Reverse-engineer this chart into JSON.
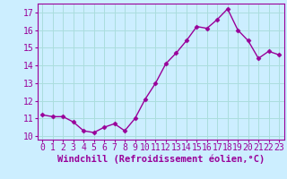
{
  "x": [
    0,
    1,
    2,
    3,
    4,
    5,
    6,
    7,
    8,
    9,
    10,
    11,
    12,
    13,
    14,
    15,
    16,
    17,
    18,
    19,
    20,
    21,
    22,
    23
  ],
  "y": [
    11.2,
    11.1,
    11.1,
    10.8,
    10.3,
    10.2,
    10.5,
    10.7,
    10.3,
    11.0,
    12.1,
    13.0,
    14.1,
    14.7,
    15.4,
    16.2,
    16.1,
    16.6,
    17.2,
    16.0,
    15.4,
    14.4,
    14.8,
    14.6
  ],
  "line_color": "#990099",
  "marker": "D",
  "marker_size": 2.5,
  "xlabel": "Windchill (Refroidissement éolien,°C)",
  "xlabel_fontsize": 7.5,
  "ylabel_ticks": [
    10,
    11,
    12,
    13,
    14,
    15,
    16,
    17
  ],
  "xtick_labels": [
    "0",
    "1",
    "2",
    "3",
    "4",
    "5",
    "6",
    "7",
    "8",
    "9",
    "10",
    "11",
    "12",
    "13",
    "14",
    "15",
    "16",
    "17",
    "18",
    "19",
    "20",
    "21",
    "22",
    "23"
  ],
  "ylim": [
    9.8,
    17.5
  ],
  "xlim": [
    -0.5,
    23.5
  ],
  "background_color": "#cceeff",
  "grid_color": "#aadddd",
  "tick_fontsize": 7,
  "linewidth": 1.0
}
